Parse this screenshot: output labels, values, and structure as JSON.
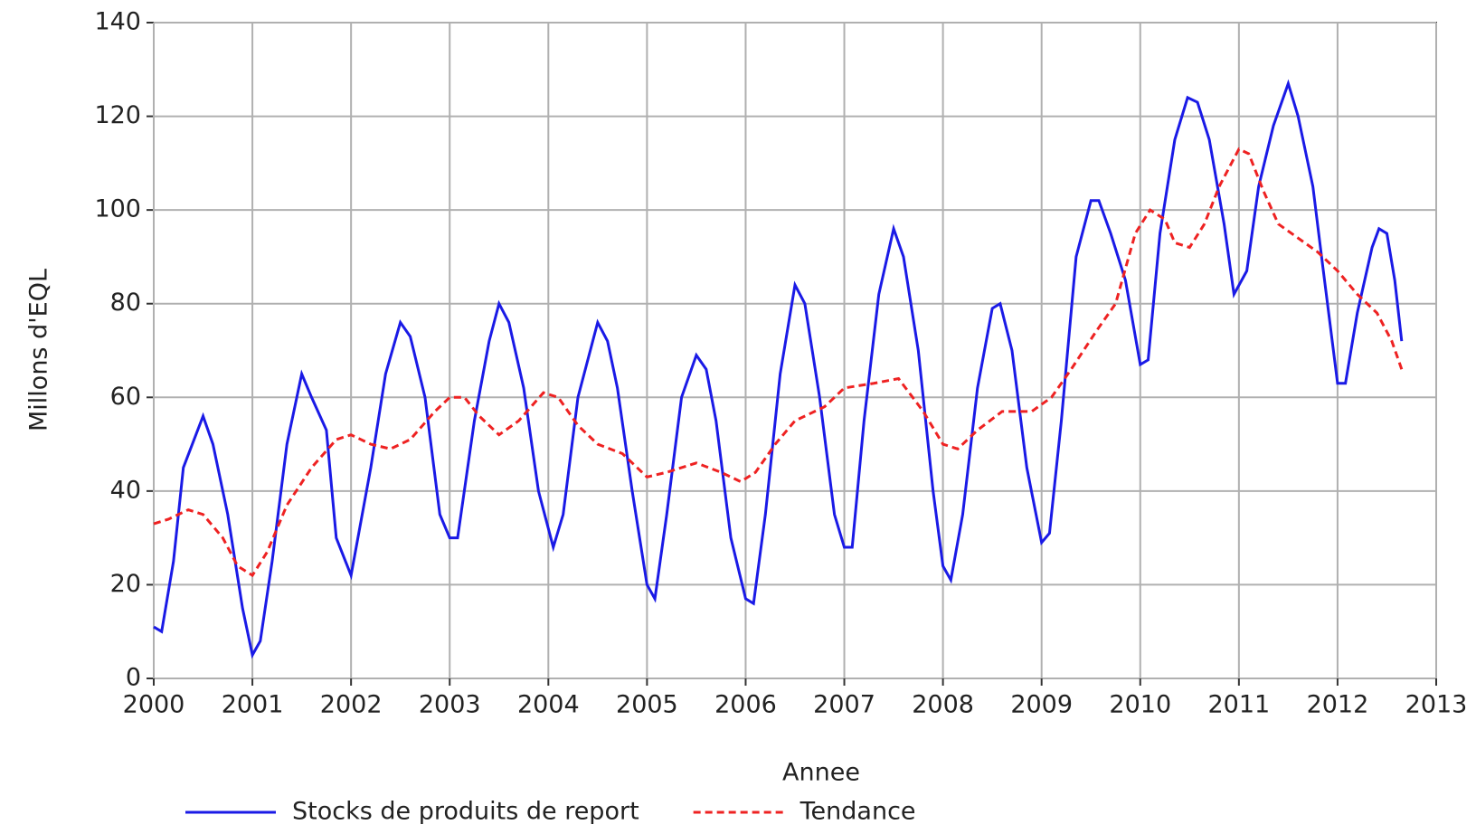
{
  "chart_data": {
    "type": "line",
    "x_label": "Annee",
    "y_label": "Millons d'EQL",
    "xlim": [
      2000,
      2013
    ],
    "ylim": [
      0,
      140
    ],
    "xticks": [
      2000,
      2001,
      2002,
      2003,
      2004,
      2005,
      2006,
      2007,
      2008,
      2009,
      2010,
      2011,
      2012,
      2013
    ],
    "yticks": [
      0,
      20,
      40,
      60,
      80,
      100,
      120,
      140
    ],
    "grid": true,
    "legend": "bottom",
    "series": [
      {
        "name": "Stocks de produits de report",
        "color": "#1a1ae6",
        "dash": "solid",
        "x": [
          2000.0,
          2000.08,
          2000.2,
          2000.3,
          2000.5,
          2000.6,
          2000.75,
          2000.9,
          2001.0,
          2001.08,
          2001.2,
          2001.35,
          2001.5,
          2001.6,
          2001.75,
          2001.85,
          2002.0,
          2002.2,
          2002.35,
          2002.5,
          2002.6,
          2002.75,
          2002.9,
          2003.0,
          2003.08,
          2003.25,
          2003.4,
          2003.5,
          2003.6,
          2003.75,
          2003.9,
          2004.05,
          2004.15,
          2004.3,
          2004.5,
          2004.6,
          2004.7,
          2004.85,
          2005.0,
          2005.08,
          2005.2,
          2005.35,
          2005.5,
          2005.6,
          2005.7,
          2005.85,
          2006.0,
          2006.08,
          2006.2,
          2006.35,
          2006.5,
          2006.6,
          2006.75,
          2006.9,
          2007.0,
          2007.08,
          2007.2,
          2007.35,
          2007.5,
          2007.6,
          2007.75,
          2007.9,
          2008.0,
          2008.08,
          2008.2,
          2008.35,
          2008.5,
          2008.58,
          2008.7,
          2008.85,
          2009.0,
          2009.08,
          2009.2,
          2009.35,
          2009.5,
          2009.58,
          2009.7,
          2009.85,
          2010.0,
          2010.08,
          2010.2,
          2010.35,
          2010.48,
          2010.58,
          2010.7,
          2010.85,
          2010.95,
          2011.08,
          2011.2,
          2011.35,
          2011.5,
          2011.6,
          2011.75,
          2011.85,
          2012.0,
          2012.08,
          2012.2,
          2012.35,
          2012.42,
          2012.5,
          2012.58,
          2012.65
        ],
        "values": [
          11,
          10,
          25,
          45,
          56,
          50,
          35,
          15,
          5,
          8,
          25,
          50,
          65,
          60,
          53,
          30,
          22,
          45,
          65,
          76,
          73,
          60,
          35,
          30,
          30,
          55,
          72,
          80,
          76,
          62,
          40,
          28,
          35,
          60,
          76,
          72,
          62,
          40,
          20,
          17,
          35,
          60,
          69,
          66,
          55,
          30,
          17,
          16,
          35,
          65,
          84,
          80,
          60,
          35,
          28,
          28,
          55,
          82,
          96,
          90,
          70,
          40,
          24,
          21,
          35,
          62,
          79,
          80,
          70,
          45,
          29,
          31,
          55,
          90,
          102,
          102,
          95,
          85,
          67,
          68,
          95,
          115,
          124,
          123,
          115,
          97,
          82,
          87,
          105,
          118,
          127,
          120,
          105,
          88,
          63,
          63,
          78,
          92,
          96,
          95,
          85,
          72
        ]
      },
      {
        "name": "Tendance",
        "color": "#ee2222",
        "dash": "dashed",
        "x": [
          2000.0,
          2000.15,
          2000.35,
          2000.5,
          2000.7,
          2000.85,
          2001.0,
          2001.15,
          2001.35,
          2001.6,
          2001.85,
          2002.0,
          2002.2,
          2002.4,
          2002.6,
          2002.85,
          2003.0,
          2003.15,
          2003.3,
          2003.5,
          2003.7,
          2003.95,
          2004.1,
          2004.3,
          2004.5,
          2004.75,
          2005.0,
          2005.2,
          2005.5,
          2005.75,
          2005.95,
          2006.1,
          2006.3,
          2006.5,
          2006.8,
          2007.0,
          2007.3,
          2007.55,
          2007.8,
          2008.0,
          2008.15,
          2008.35,
          2008.6,
          2008.9,
          2009.1,
          2009.3,
          2009.55,
          2009.75,
          2009.95,
          2010.1,
          2010.25,
          2010.35,
          2010.5,
          2010.65,
          2010.8,
          2011.0,
          2011.1,
          2011.25,
          2011.4,
          2011.6,
          2011.8,
          2012.0,
          2012.2,
          2012.4,
          2012.55,
          2012.65
        ],
        "values": [
          33,
          34,
          36,
          35,
          30,
          24,
          22,
          27,
          37,
          45,
          51,
          52,
          50,
          49,
          51,
          57,
          60,
          60,
          56,
          52,
          55,
          61,
          60,
          54,
          50,
          48,
          43,
          44,
          46,
          44,
          42,
          44,
          50,
          55,
          58,
          62,
          63,
          64,
          57,
          50,
          49,
          53,
          57,
          57,
          60,
          66,
          74,
          80,
          95,
          100,
          98,
          93,
          92,
          97,
          105,
          113,
          112,
          104,
          97,
          94,
          91,
          87,
          82,
          78,
          72,
          66
        ]
      }
    ]
  }
}
